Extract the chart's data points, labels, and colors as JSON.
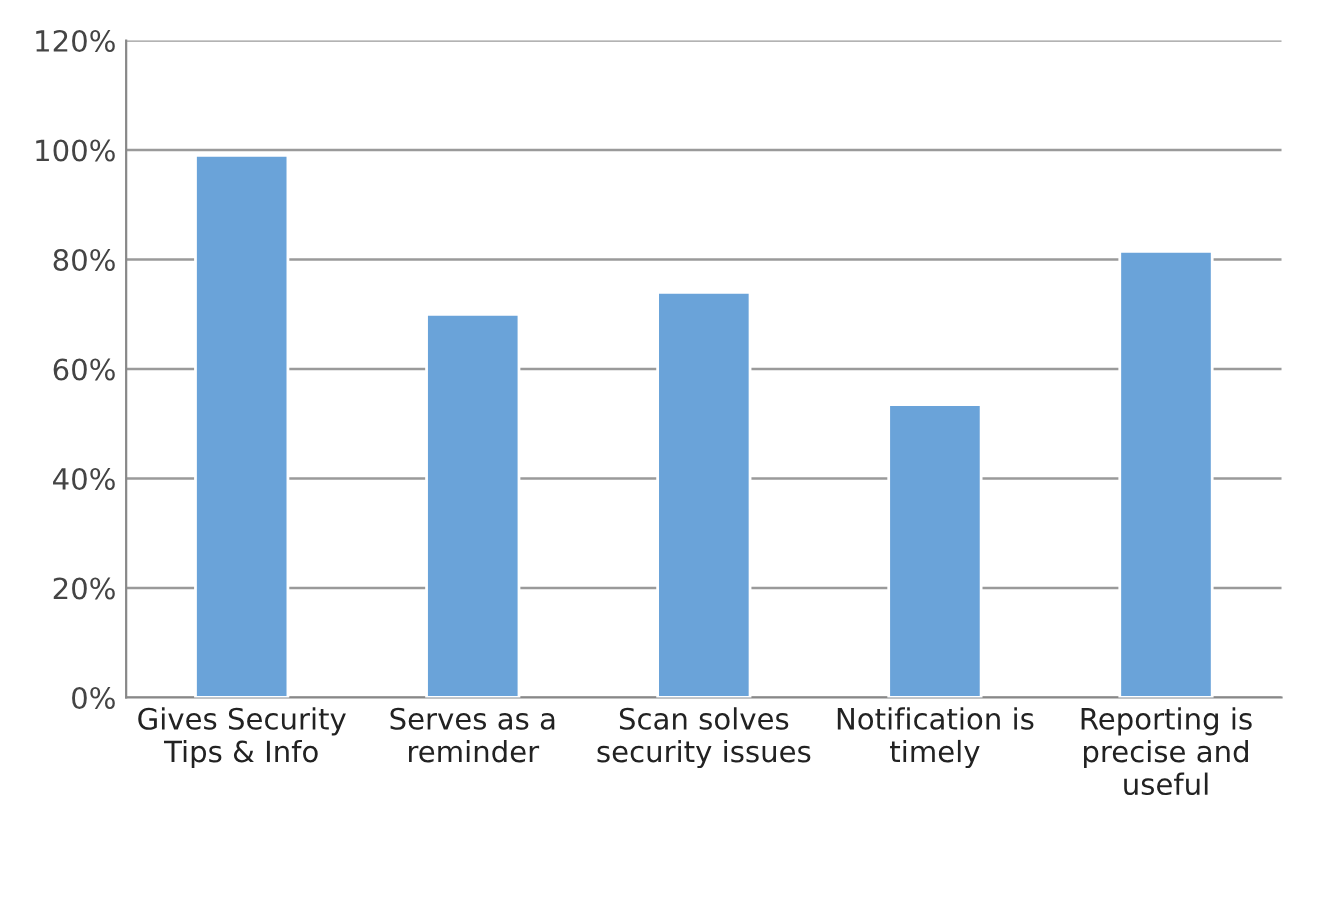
{
  "chart_data": {
    "type": "bar",
    "categories": [
      "Gives Security\nTips & Info",
      "Serves as a\nreminder",
      "Scan solves\nsecurity issues",
      "Notification is\ntimely",
      "Reporting is\nprecise and\nuseful"
    ],
    "values": [
      99,
      70,
      74,
      53.5,
      81.5
    ],
    "color": "#6aa3d9",
    "ylim": [
      0,
      120
    ],
    "yticks": [
      {
        "value": 0,
        "label": "0%"
      },
      {
        "value": 20,
        "label": "20%"
      },
      {
        "value": 40,
        "label": "40%"
      },
      {
        "value": 60,
        "label": "60%"
      },
      {
        "value": 80,
        "label": "80%"
      },
      {
        "value": 100,
        "label": "100%"
      },
      {
        "value": 120,
        "label": "120%"
      }
    ],
    "grid": "y"
  }
}
